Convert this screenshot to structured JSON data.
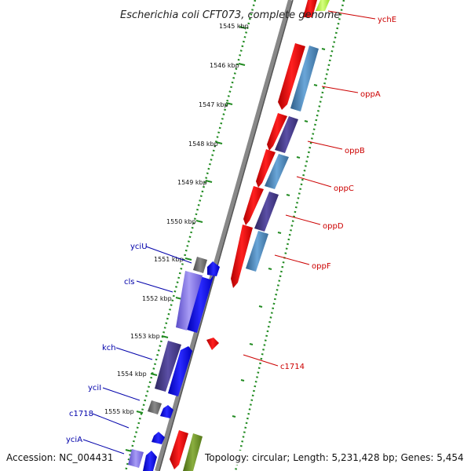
{
  "title": "Escherichia coli CFT073, complete genome",
  "footer": {
    "accession": "Accession: NC_004431",
    "topology": "Topology: circular; Length: 5,231,428 bp; Genes: 5,454"
  },
  "ticks": [
    {
      "label": "1545 kbp"
    },
    {
      "label": "1546 kbp"
    },
    {
      "label": "1547 kbp"
    },
    {
      "label": "1548 kbp"
    },
    {
      "label": "1549 kbp"
    },
    {
      "label": "1550 kbp"
    },
    {
      "label": "1551 kbp"
    },
    {
      "label": "1552 kbp"
    },
    {
      "label": "1553 kbp"
    },
    {
      "label": "1554 kbp"
    },
    {
      "label": "1555 kbp"
    }
  ],
  "gene_labels": [
    {
      "name": "ychE",
      "strand": "forward"
    },
    {
      "name": "oppA",
      "strand": "forward"
    },
    {
      "name": "oppB",
      "strand": "forward"
    },
    {
      "name": "oppC",
      "strand": "forward"
    },
    {
      "name": "oppD",
      "strand": "forward"
    },
    {
      "name": "oppF",
      "strand": "forward"
    },
    {
      "name": "c1714",
      "strand": "forward"
    },
    {
      "name": "yciU",
      "strand": "reverse"
    },
    {
      "name": "cls",
      "strand": "reverse"
    },
    {
      "name": "kch",
      "strand": "reverse"
    },
    {
      "name": "yciI",
      "strand": "reverse"
    },
    {
      "name": "c1718",
      "strand": "reverse"
    },
    {
      "name": "yciA",
      "strand": "reverse"
    }
  ],
  "colors": {
    "forward_cds": "#ff0000",
    "forward_label": "#cc0000",
    "reverse_cds": "#0000ff",
    "reverse_label": "#0000aa",
    "cog_blue": "#4682b4",
    "cog_purple": "#483d8b",
    "cog_lavender": "#7b68ee",
    "cog_gray": "#696969",
    "cog_olive": "#6b8e23",
    "cog_lime": "#adff2f",
    "tick_track": "#228b22",
    "backbone": "#888888"
  }
}
